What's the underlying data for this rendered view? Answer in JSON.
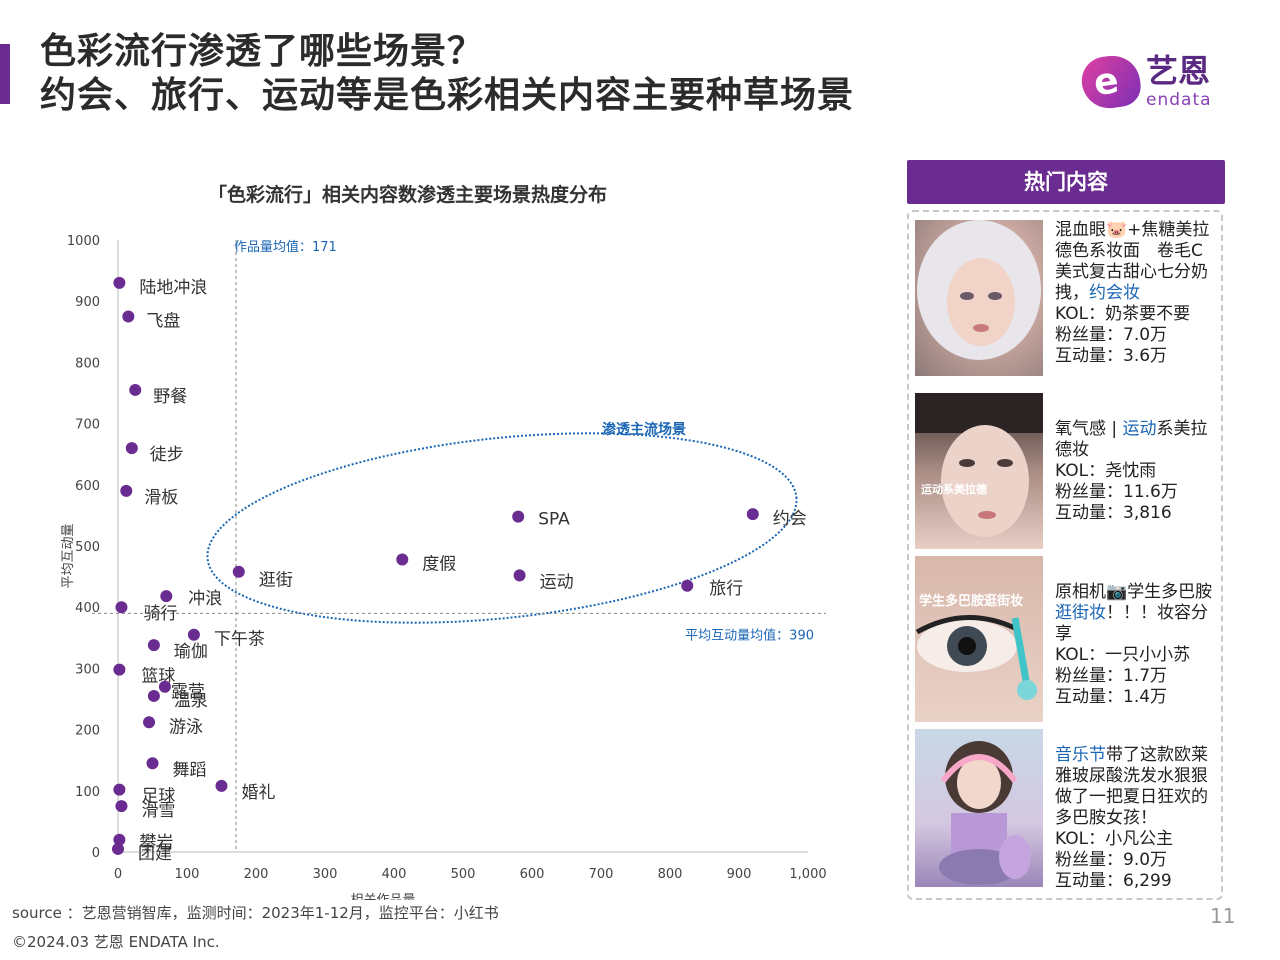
{
  "header": {
    "title_line1": "色彩流行渗透了哪些场景？",
    "title_line2": "约会、旅行、运动等是色彩相关内容主要种草场景"
  },
  "logo": {
    "cn": "艺恩",
    "en": "endata",
    "mark": "e"
  },
  "colors": {
    "brand": "#6a2c91",
    "point": "#6a2c91",
    "ellipse": "#1a66b5",
    "highlight": "#1a66b5"
  },
  "chart_data": {
    "type": "scatter",
    "title": "「色彩流行」相关内容数渗透主要场景热度分布",
    "xlabel": "相关作品量",
    "ylabel": "平均互动量",
    "xlim": [
      0,
      1000
    ],
    "ylim": [
      0,
      1000
    ],
    "xticks": [
      "0",
      "100",
      "200",
      "300",
      "400",
      "500",
      "600",
      "700",
      "800",
      "900",
      "1,000"
    ],
    "yticks": [
      "0",
      "100",
      "200",
      "300",
      "400",
      "500",
      "600",
      "700",
      "800",
      "900",
      "1000"
    ],
    "grid": false,
    "ref_lines": {
      "x_mean": {
        "value": 171,
        "label": "作品量均值：171"
      },
      "y_mean": {
        "value": 390,
        "label": "平均互动量均值：390"
      }
    },
    "cluster": {
      "label": "渗透主流场景"
    },
    "points": [
      {
        "name": "陆地冲浪",
        "x": 2,
        "y": 930
      },
      {
        "name": "飞盘",
        "x": 15,
        "y": 875
      },
      {
        "name": "野餐",
        "x": 25,
        "y": 755
      },
      {
        "name": "徒步",
        "x": 20,
        "y": 660
      },
      {
        "name": "滑板",
        "x": 12,
        "y": 590
      },
      {
        "name": "SPA",
        "x": 580,
        "y": 548
      },
      {
        "name": "约会",
        "x": 920,
        "y": 552
      },
      {
        "name": "度假",
        "x": 412,
        "y": 478
      },
      {
        "name": "逛街",
        "x": 175,
        "y": 458
      },
      {
        "name": "运动",
        "x": 582,
        "y": 452
      },
      {
        "name": "旅行",
        "x": 825,
        "y": 435
      },
      {
        "name": "冲浪",
        "x": 70,
        "y": 418
      },
      {
        "name": "骑行",
        "x": 5,
        "y": 400
      },
      {
        "name": "下午茶",
        "x": 110,
        "y": 355
      },
      {
        "name": "瑜伽",
        "x": 52,
        "y": 338
      },
      {
        "name": "篮球",
        "x": 2,
        "y": 298
      },
      {
        "name": "露营",
        "x": 68,
        "y": 270
      },
      {
        "name": "温泉",
        "x": 52,
        "y": 255
      },
      {
        "name": "游泳",
        "x": 45,
        "y": 212
      },
      {
        "name": "舞蹈",
        "x": 50,
        "y": 145
      },
      {
        "name": "婚礼",
        "x": 150,
        "y": 108
      },
      {
        "name": "足球",
        "x": 2,
        "y": 102
      },
      {
        "name": "滑雪",
        "x": 5,
        "y": 75
      },
      {
        "name": "攀岩",
        "x": 2,
        "y": 20
      },
      {
        "name": "团建",
        "x": 0,
        "y": 5
      }
    ]
  },
  "panel": {
    "title": "热门内容",
    "cards": [
      {
        "text_a": "混血眼🐷+焦糖美拉德色系妆面　卷毛C美式复古甜心七分奶拽，",
        "highlight": "约会妆",
        "text_b": "",
        "kol": "KOL：奶茶要不要",
        "fans": "粉丝量：7.0万",
        "inter": "互动量：3.6万",
        "thumb_caption": ""
      },
      {
        "text_a": "氧气感 | ",
        "highlight": "运动",
        "text_b": "系美拉德妆",
        "kol": "KOL：尧忱雨",
        "fans": "粉丝量：11.6万",
        "inter": "互动量：3,816",
        "thumb_caption": "运动系美拉德"
      },
      {
        "text_a": "原相机📷学生多巴胺",
        "highlight": "逛街妆",
        "text_b": "！！！妆容分享",
        "kol": "KOL：一只小小苏",
        "fans": "粉丝量：1.7万",
        "inter": "互动量：1.4万",
        "thumb_caption": "学生多巴胺逛街妆"
      },
      {
        "text_a": "",
        "highlight": "音乐节",
        "text_b": "带了这款欧莱雅玻尿酸洗发水狠狠做了一把夏日狂欢的多巴胺女孩！",
        "kol": "KOL：小凡公主",
        "fans": "粉丝量：9.0万",
        "inter": "互动量：6,299",
        "thumb_caption": ""
      }
    ]
  },
  "footer": {
    "source": "source ：艺恩营销智库，监测时间：2023年1-12月，监控平台：小红书",
    "copyright": "©2024.03  艺恩 ENDATA Inc.",
    "page": "11"
  }
}
